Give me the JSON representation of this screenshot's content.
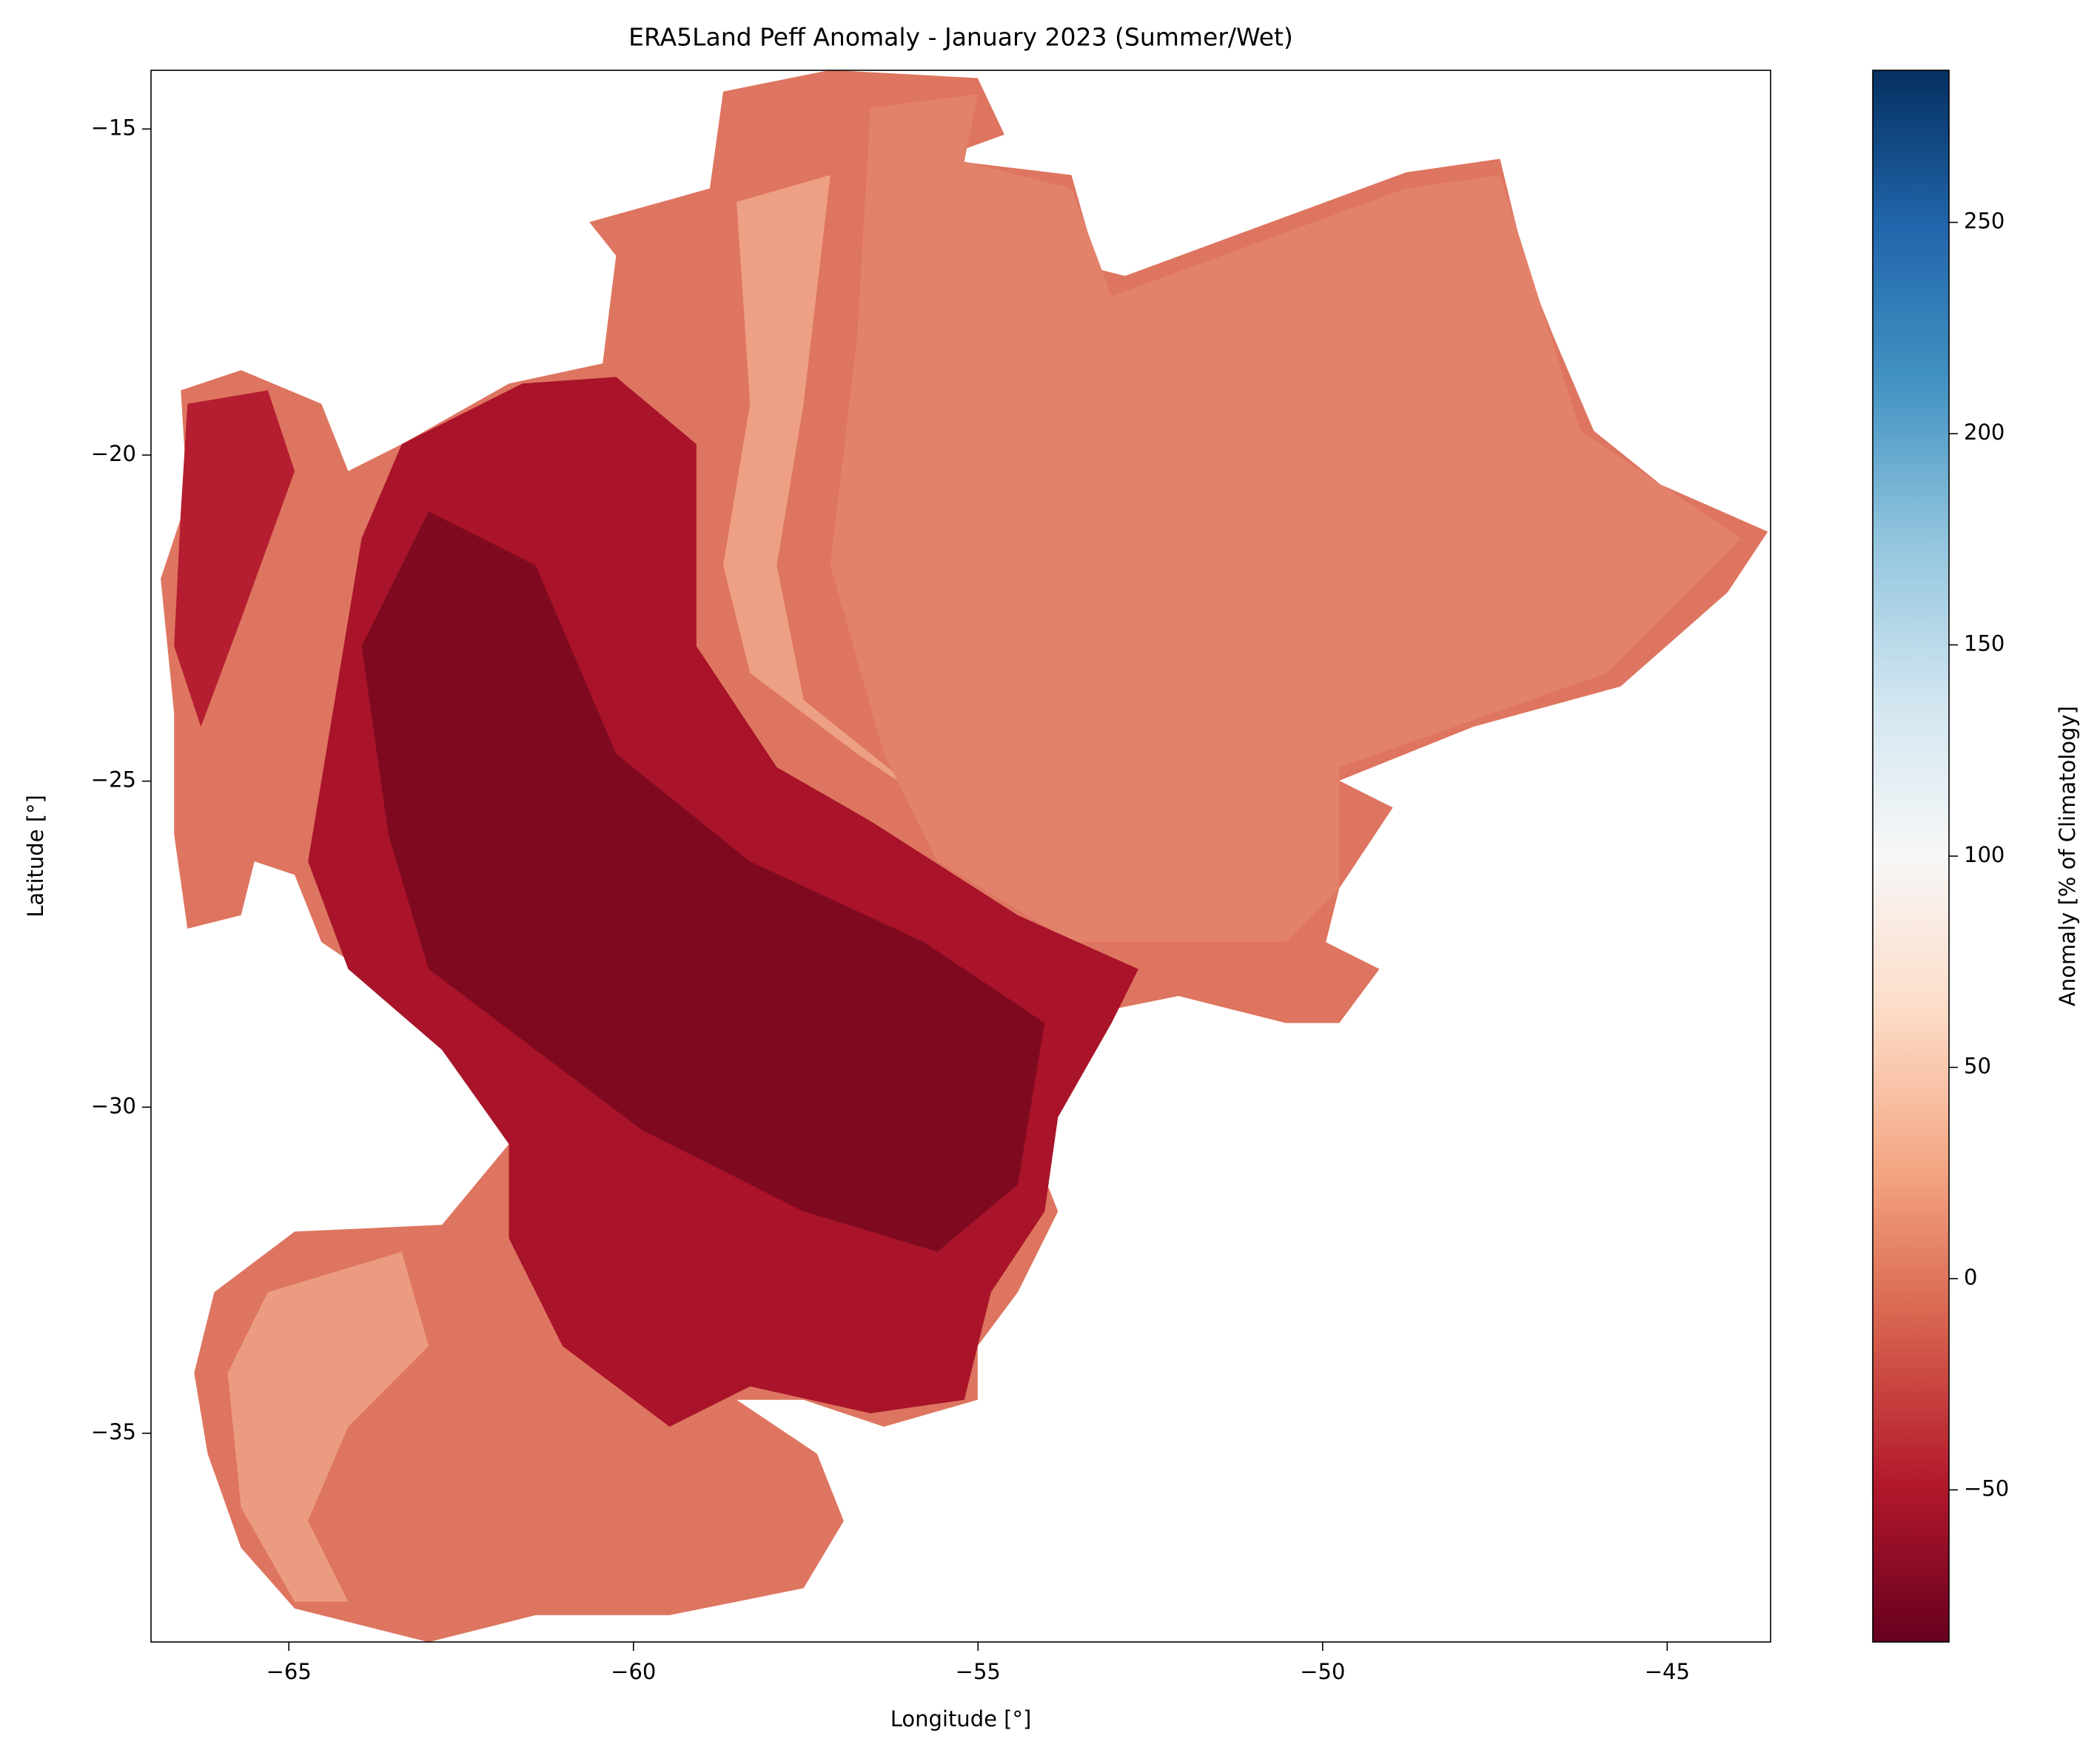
{
  "chart_data": {
    "type": "heatmap",
    "title": "ERA5Land Peff Anomaly - January 2023 (Summer/Wet)",
    "x_label": "Longitude [°]",
    "y_label": "Latitude [°]",
    "xlim": [
      -67.0,
      -43.5
    ],
    "ylim": [
      -38.2,
      -14.1
    ],
    "xticks": [
      {
        "value": -65,
        "label": "−65"
      },
      {
        "value": -60,
        "label": "−60"
      },
      {
        "value": -55,
        "label": "−55"
      },
      {
        "value": -50,
        "label": "−50"
      },
      {
        "value": -45,
        "label": "−45"
      }
    ],
    "yticks": [
      {
        "value": -35,
        "label": "−35"
      },
      {
        "value": -30,
        "label": "−30"
      },
      {
        "value": -25,
        "label": "−25"
      },
      {
        "value": -20,
        "label": "−20"
      },
      {
        "value": -15,
        "label": "−15"
      }
    ],
    "colorbar": {
      "label": "Anomaly [% of Climatology]",
      "lim": [
        -86,
        286
      ],
      "ticks": [
        {
          "value": -50,
          "label": "−50"
        },
        0,
        50,
        100,
        150,
        200,
        250
      ],
      "colormap": [
        "#67001f",
        "#b2182b",
        "#d6604d",
        "#f4a582",
        "#fddbc7",
        "#f7f7f7",
        "#d1e5f0",
        "#92c5de",
        "#4393c3",
        "#2166ac",
        "#053061"
      ]
    }
  }
}
